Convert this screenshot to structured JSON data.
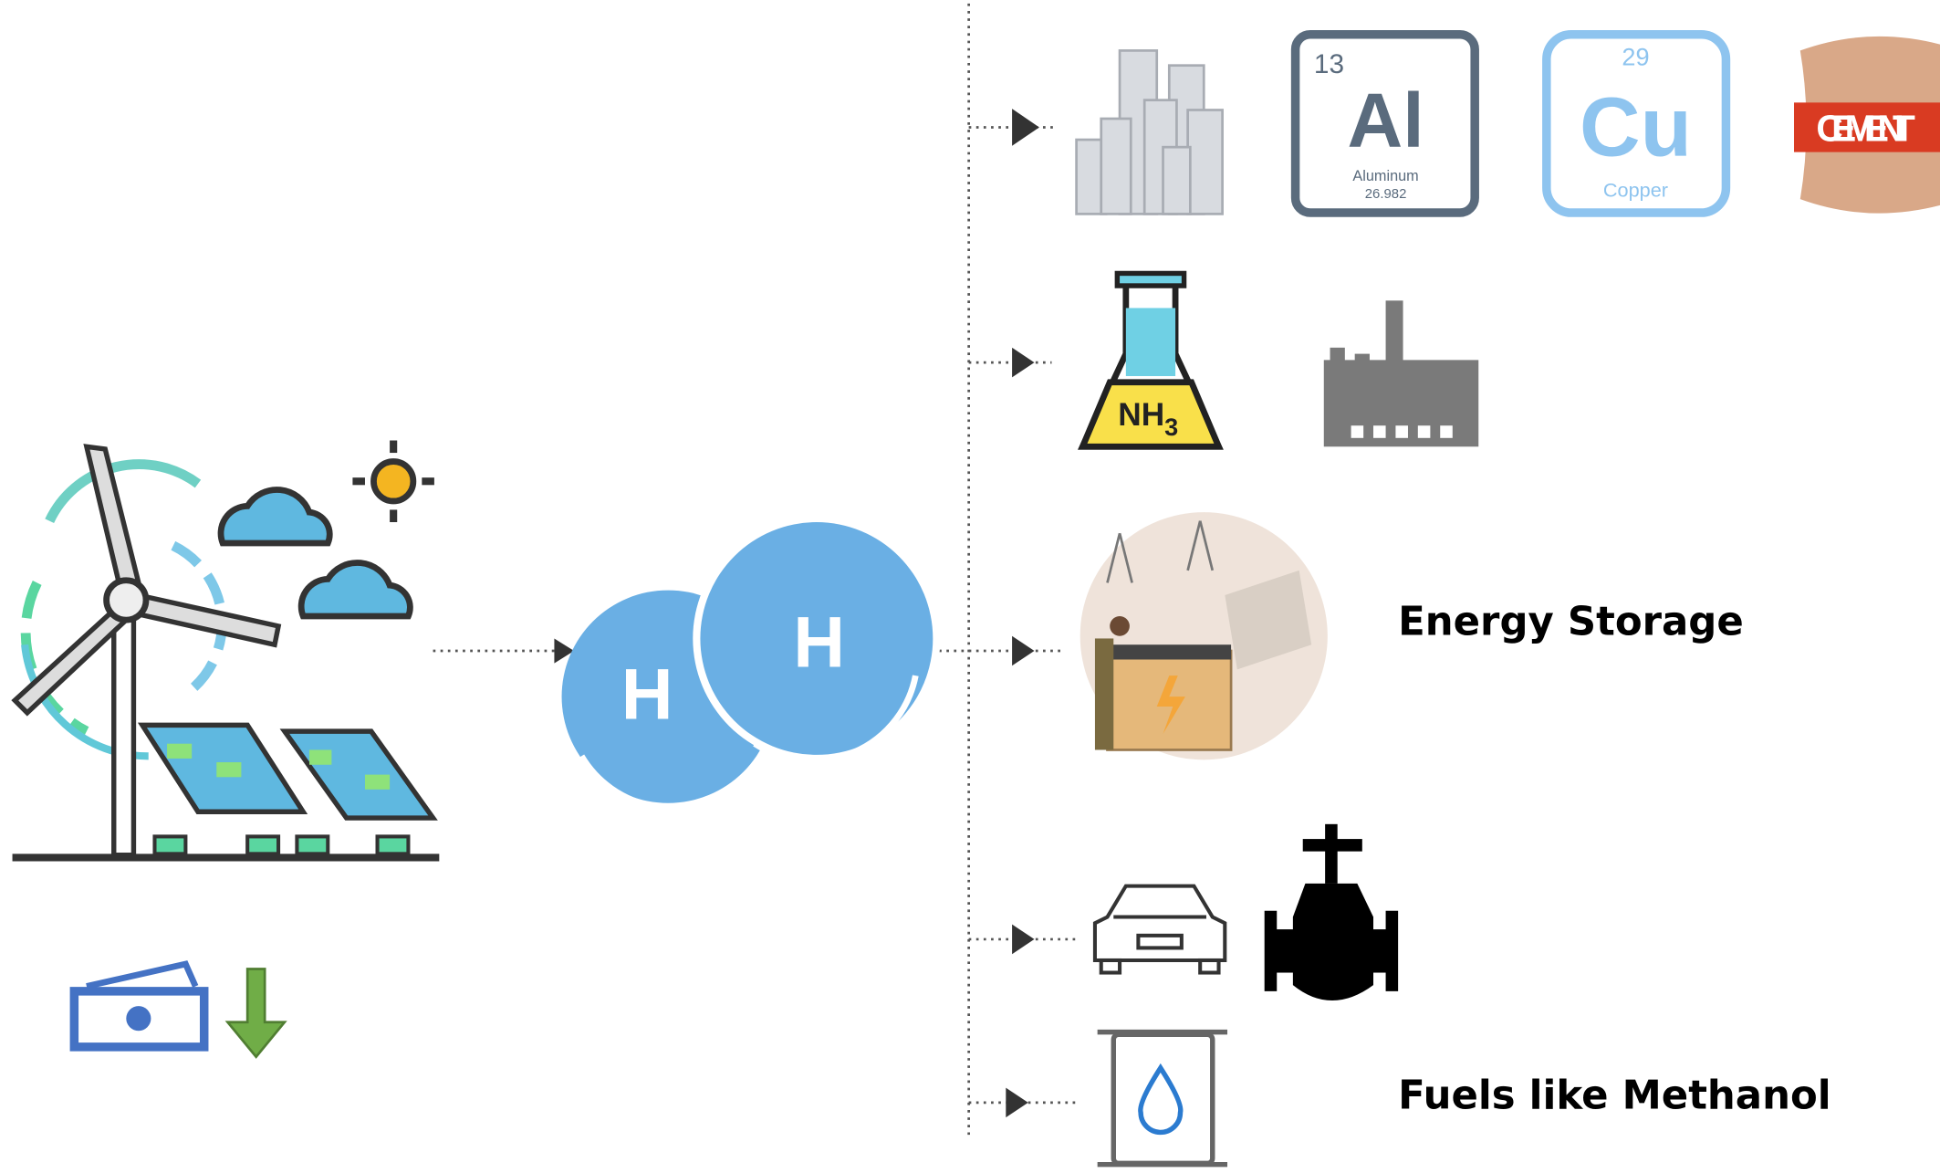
{
  "hydrogen": {
    "atoms": [
      "H",
      "H"
    ]
  },
  "metals": {
    "aluminum": {
      "number": "13",
      "symbol": "Al",
      "name": "Aluminum",
      "mass": "26.982"
    },
    "copper": {
      "number": "29",
      "symbol": "Cu",
      "name": "Copper"
    },
    "cement": "CEMENT"
  },
  "chemicals": {
    "formula": {
      "base": "NH",
      "sub": "3"
    }
  },
  "storage": {
    "label": "Energy Storage"
  },
  "fuels": {
    "label": "Fuels like Methanol"
  }
}
